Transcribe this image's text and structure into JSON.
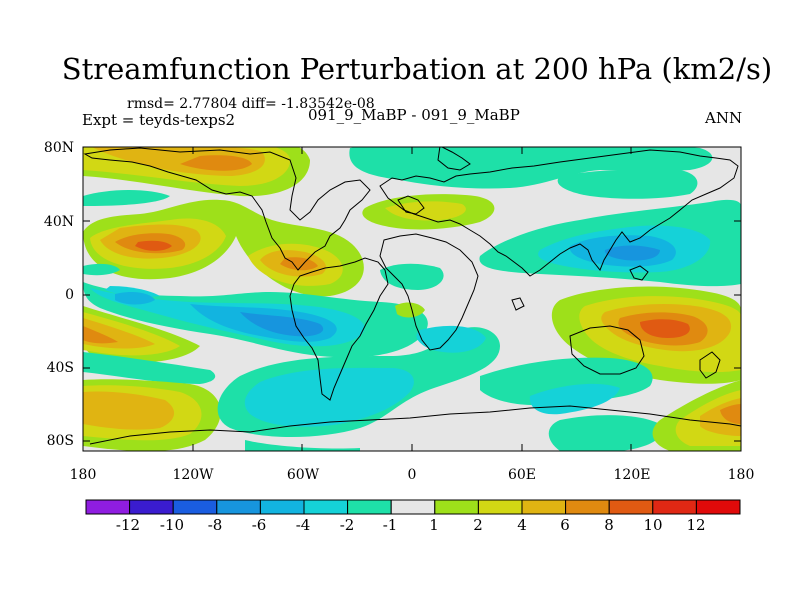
{
  "title": "Streamfunction Perturbation at 200 hPa (km2/s)",
  "stats_line": "rmsd= 2.77804 diff= -1.83542e-08",
  "left_string": "Expt = teyds-texps2",
  "center_string": "091_9_MaBP - 091_9_MaBP",
  "right_string": "ANN",
  "lat_labels": [
    "80N",
    "40N",
    "0",
    "40S",
    "80S"
  ],
  "lon_labels": [
    "180",
    "120W",
    "60W",
    "0",
    "60E",
    "120E",
    "180"
  ],
  "colorbar": {
    "labels": [
      "-12",
      "-10",
      "-8",
      "-6",
      "-4",
      "-2",
      "-1",
      "1",
      "2",
      "4",
      "6",
      "8",
      "10",
      "12"
    ],
    "colors": [
      "#8f1de0",
      "#3a1ccf",
      "#1a5de0",
      "#1795de",
      "#12b4e0",
      "#15d2d8",
      "#1ee0a8",
      "#e6e6e6",
      "#9ee01a",
      "#d2d814",
      "#e0b412",
      "#e08a10",
      "#e05a12",
      "#e02814",
      "#e00a0a"
    ]
  },
  "colors": {
    "zero_band": "#e6e6e6",
    "frame": "#000000"
  }
}
